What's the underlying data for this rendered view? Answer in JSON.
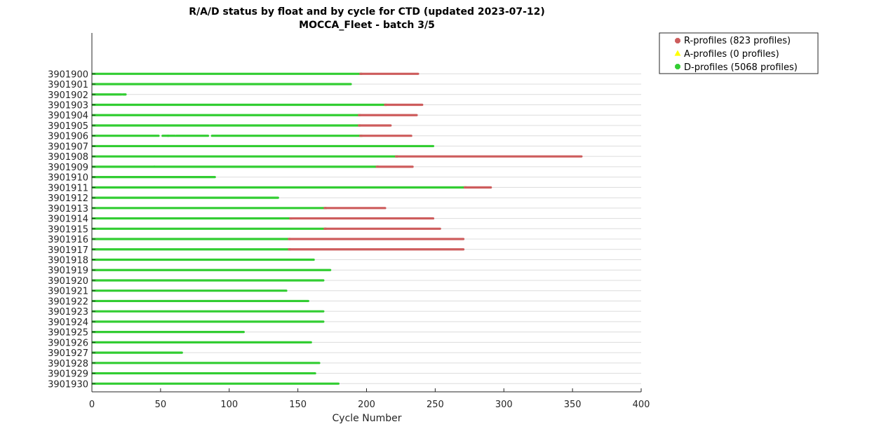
{
  "chart_data": {
    "type": "scatter",
    "title": "R/A/D status by float and by cycle for CTD (updated 2023-07-12)",
    "subtitle": "MOCCA_Fleet - batch 3/5",
    "xlabel": "Cycle Number",
    "ylabel": "",
    "xlim": [
      0,
      400
    ],
    "xticks": [
      0,
      50,
      100,
      150,
      200,
      250,
      300,
      350,
      400
    ],
    "grid": true,
    "legend_position": "outside-top-right",
    "legend": [
      {
        "label": "R-profiles (823 profiles)",
        "color": "#cd5c5c",
        "marker": "octagon"
      },
      {
        "label": "A-profiles (0 profiles)",
        "color": "#ffff00",
        "marker": "triangle"
      },
      {
        "label": "D-profiles (5068 profiles)",
        "color": "#32cd32",
        "marker": "octagon"
      }
    ],
    "colors": {
      "R": "#cd5c5c",
      "A": "#ffff00",
      "D": "#32cd32"
    },
    "floats": [
      {
        "id": "3901930",
        "segments": [
          {
            "s": "D",
            "from": 1,
            "to": 179
          }
        ]
      },
      {
        "id": "3901929",
        "segments": [
          {
            "s": "D",
            "from": 1,
            "to": 162
          }
        ]
      },
      {
        "id": "3901928",
        "segments": [
          {
            "s": "D",
            "from": 1,
            "to": 165
          }
        ]
      },
      {
        "id": "3901927",
        "segments": [
          {
            "s": "D",
            "from": 1,
            "to": 65
          }
        ]
      },
      {
        "id": "3901926",
        "segments": [
          {
            "s": "D",
            "from": 1,
            "to": 159
          }
        ]
      },
      {
        "id": "3901925",
        "segments": [
          {
            "s": "D",
            "from": 1,
            "to": 110
          }
        ]
      },
      {
        "id": "3901924",
        "segments": [
          {
            "s": "D",
            "from": 1,
            "to": 168
          }
        ]
      },
      {
        "id": "3901923",
        "segments": [
          {
            "s": "D",
            "from": 1,
            "to": 168
          }
        ]
      },
      {
        "id": "3901922",
        "segments": [
          {
            "s": "D",
            "from": 1,
            "to": 157
          }
        ]
      },
      {
        "id": "3901921",
        "segments": [
          {
            "s": "D",
            "from": 1,
            "to": 141
          }
        ]
      },
      {
        "id": "3901920",
        "segments": [
          {
            "s": "D",
            "from": 1,
            "to": 168
          }
        ]
      },
      {
        "id": "3901919",
        "segments": [
          {
            "s": "D",
            "from": 1,
            "to": 173
          }
        ]
      },
      {
        "id": "3901918",
        "segments": [
          {
            "s": "D",
            "from": 1,
            "to": 161
          }
        ]
      },
      {
        "id": "3901917",
        "segments": [
          {
            "s": "D",
            "from": 1,
            "to": 144
          },
          {
            "s": "R",
            "from": 144,
            "to": 270
          }
        ]
      },
      {
        "id": "3901916",
        "segments": [
          {
            "s": "D",
            "from": 1,
            "to": 144
          },
          {
            "s": "R",
            "from": 144,
            "to": 270
          }
        ]
      },
      {
        "id": "3901915",
        "segments": [
          {
            "s": "D",
            "from": 1,
            "to": 170
          },
          {
            "s": "R",
            "from": 170,
            "to": 253
          }
        ]
      },
      {
        "id": "3901914",
        "segments": [
          {
            "s": "D",
            "from": 1,
            "to": 145
          },
          {
            "s": "R",
            "from": 145,
            "to": 248
          }
        ]
      },
      {
        "id": "3901913",
        "segments": [
          {
            "s": "D",
            "from": 1,
            "to": 170
          },
          {
            "s": "R",
            "from": 170,
            "to": 213
          }
        ]
      },
      {
        "id": "3901912",
        "segments": [
          {
            "s": "D",
            "from": 1,
            "to": 135
          }
        ]
      },
      {
        "id": "3901911",
        "segments": [
          {
            "s": "D",
            "from": 1,
            "to": 272
          },
          {
            "s": "R",
            "from": 272,
            "to": 290
          }
        ]
      },
      {
        "id": "3901910",
        "segments": [
          {
            "s": "D",
            "from": 1,
            "to": 89
          }
        ]
      },
      {
        "id": "3901909",
        "segments": [
          {
            "s": "D",
            "from": 1,
            "to": 45
          },
          {
            "s": "D",
            "from": 46,
            "to": 208
          },
          {
            "s": "R",
            "from": 208,
            "to": 233
          }
        ]
      },
      {
        "id": "3901908",
        "segments": [
          {
            "s": "D",
            "from": 1,
            "to": 222
          },
          {
            "s": "R",
            "from": 222,
            "to": 356
          }
        ]
      },
      {
        "id": "3901907",
        "segments": [
          {
            "s": "D",
            "from": 1,
            "to": 248
          }
        ]
      },
      {
        "id": "3901906",
        "segments": [
          {
            "s": "D",
            "from": 1,
            "to": 48
          },
          {
            "s": "D",
            "from": 52,
            "to": 55
          },
          {
            "s": "D",
            "from": 56,
            "to": 60
          },
          {
            "s": "D",
            "from": 62,
            "to": 84
          },
          {
            "s": "D",
            "from": 88,
            "to": 196
          },
          {
            "s": "R",
            "from": 196,
            "to": 232
          }
        ]
      },
      {
        "id": "3901905",
        "segments": [
          {
            "s": "D",
            "from": 1,
            "to": 195
          },
          {
            "s": "R",
            "from": 195,
            "to": 217
          }
        ]
      },
      {
        "id": "3901904",
        "segments": [
          {
            "s": "D",
            "from": 1,
            "to": 195
          },
          {
            "s": "R",
            "from": 195,
            "to": 236
          }
        ]
      },
      {
        "id": "3901903",
        "segments": [
          {
            "s": "D",
            "from": 1,
            "to": 214
          },
          {
            "s": "R",
            "from": 214,
            "to": 240
          }
        ]
      },
      {
        "id": "3901902",
        "segments": [
          {
            "s": "D",
            "from": 1,
            "to": 21
          },
          {
            "s": "D",
            "from": 23,
            "to": 24
          }
        ]
      },
      {
        "id": "3901901",
        "segments": [
          {
            "s": "D",
            "from": 1,
            "to": 188
          }
        ]
      },
      {
        "id": "3901900",
        "segments": [
          {
            "s": "D",
            "from": 1,
            "to": 196
          },
          {
            "s": "R",
            "from": 196,
            "to": 237
          }
        ]
      }
    ]
  }
}
